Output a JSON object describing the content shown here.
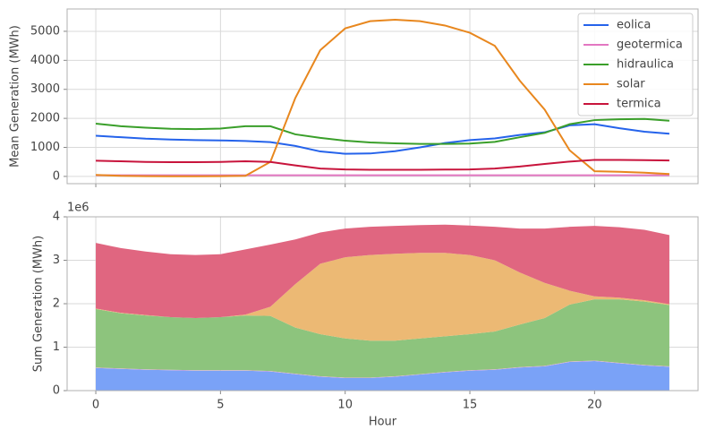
{
  "chart_data": [
    {
      "type": "line",
      "ylabel": "Mean Generation (MWh)",
      "x": [
        0,
        1,
        2,
        3,
        4,
        5,
        6,
        7,
        8,
        9,
        10,
        11,
        12,
        13,
        14,
        15,
        16,
        17,
        18,
        19,
        20,
        21,
        22,
        23
      ],
      "xlim": [
        -1.15,
        24.15
      ],
      "xticks": [
        0,
        5,
        10,
        15,
        20
      ],
      "ylim": [
        -250,
        5770
      ],
      "yticks": [
        0,
        1000,
        2000,
        3000,
        4000,
        5000
      ],
      "grid": true,
      "legend": "upper right",
      "series": [
        {
          "name": "eolica",
          "color": "#2563eb",
          "values": [
            1400,
            1350,
            1300,
            1270,
            1250,
            1240,
            1220,
            1180,
            1050,
            860,
            780,
            790,
            870,
            1000,
            1150,
            1250,
            1310,
            1430,
            1520,
            1760,
            1800,
            1660,
            1540,
            1470
          ]
        },
        {
          "name": "geotermica",
          "color": "#e377c2",
          "values": [
            40,
            40,
            40,
            40,
            40,
            40,
            40,
            40,
            40,
            40,
            40,
            40,
            40,
            40,
            40,
            40,
            40,
            40,
            40,
            40,
            40,
            40,
            40,
            40
          ]
        },
        {
          "name": "hidraulica",
          "color": "#3a9f2a",
          "values": [
            1820,
            1730,
            1680,
            1640,
            1630,
            1650,
            1730,
            1730,
            1450,
            1330,
            1230,
            1170,
            1140,
            1120,
            1120,
            1130,
            1190,
            1350,
            1500,
            1800,
            1940,
            1970,
            1980,
            1920
          ]
        },
        {
          "name": "solar",
          "color": "#e8871e",
          "values": [
            50,
            20,
            10,
            5,
            5,
            10,
            20,
            500,
            2700,
            4350,
            5100,
            5350,
            5400,
            5350,
            5200,
            4950,
            4500,
            3300,
            2300,
            900,
            180,
            160,
            130,
            80
          ]
        },
        {
          "name": "termica",
          "color": "#c8143c",
          "values": [
            540,
            520,
            500,
            490,
            490,
            500,
            520,
            500,
            380,
            270,
            240,
            230,
            230,
            230,
            235,
            240,
            270,
            340,
            430,
            510,
            570,
            570,
            560,
            550
          ]
        }
      ]
    },
    {
      "type": "area",
      "stacked": true,
      "xlabel": "Hour",
      "ylabel": "Sum Generation (MWh)",
      "offset_label": "1e6",
      "x": [
        0,
        1,
        2,
        3,
        4,
        5,
        6,
        7,
        8,
        9,
        10,
        11,
        12,
        13,
        14,
        15,
        16,
        17,
        18,
        19,
        20,
        21,
        22,
        23
      ],
      "xlim": [
        -1.15,
        24.15
      ],
      "xticks": [
        0,
        5,
        10,
        15,
        20
      ],
      "ylim": [
        0,
        4
      ],
      "yticks": [
        0,
        1,
        2,
        3,
        4
      ],
      "grid": true,
      "series": [
        {
          "name": "eolica",
          "color": "#7aa2f7",
          "values": [
            0.52,
            0.5,
            0.48,
            0.47,
            0.46,
            0.46,
            0.46,
            0.44,
            0.38,
            0.32,
            0.29,
            0.29,
            0.32,
            0.37,
            0.42,
            0.46,
            0.48,
            0.53,
            0.56,
            0.66,
            0.68,
            0.63,
            0.58,
            0.55
          ]
        },
        {
          "name": "geotermica",
          "color": "#eea0d6",
          "values": [
            0.01,
            0.01,
            0.01,
            0.01,
            0.01,
            0.01,
            0.01,
            0.01,
            0.01,
            0.01,
            0.01,
            0.01,
            0.01,
            0.01,
            0.01,
            0.01,
            0.01,
            0.01,
            0.01,
            0.01,
            0.01,
            0.01,
            0.01,
            0.01
          ]
        },
        {
          "name": "hidraulica",
          "color": "#8dc47d",
          "values": [
            1.35,
            1.27,
            1.24,
            1.21,
            1.2,
            1.22,
            1.26,
            1.27,
            1.06,
            0.97,
            0.9,
            0.85,
            0.82,
            0.82,
            0.82,
            0.83,
            0.87,
            0.98,
            1.1,
            1.31,
            1.41,
            1.46,
            1.46,
            1.41
          ]
        },
        {
          "name": "solar",
          "color": "#ecb974",
          "values": [
            0.01,
            0.01,
            0.01,
            0,
            0,
            0,
            0.02,
            0.21,
            1.0,
            1.62,
            1.87,
            1.97,
            2.0,
            1.97,
            1.92,
            1.82,
            1.64,
            1.2,
            0.81,
            0.32,
            0.07,
            0.04,
            0.03,
            0.02
          ]
        },
        {
          "name": "termica",
          "color": "#e06680",
          "values": [
            1.51,
            1.49,
            1.46,
            1.45,
            1.45,
            1.45,
            1.5,
            1.43,
            1.03,
            0.72,
            0.66,
            0.65,
            0.64,
            0.64,
            0.65,
            0.68,
            0.77,
            1.01,
            1.25,
            1.47,
            1.62,
            1.62,
            1.62,
            1.59
          ]
        }
      ]
    }
  ]
}
